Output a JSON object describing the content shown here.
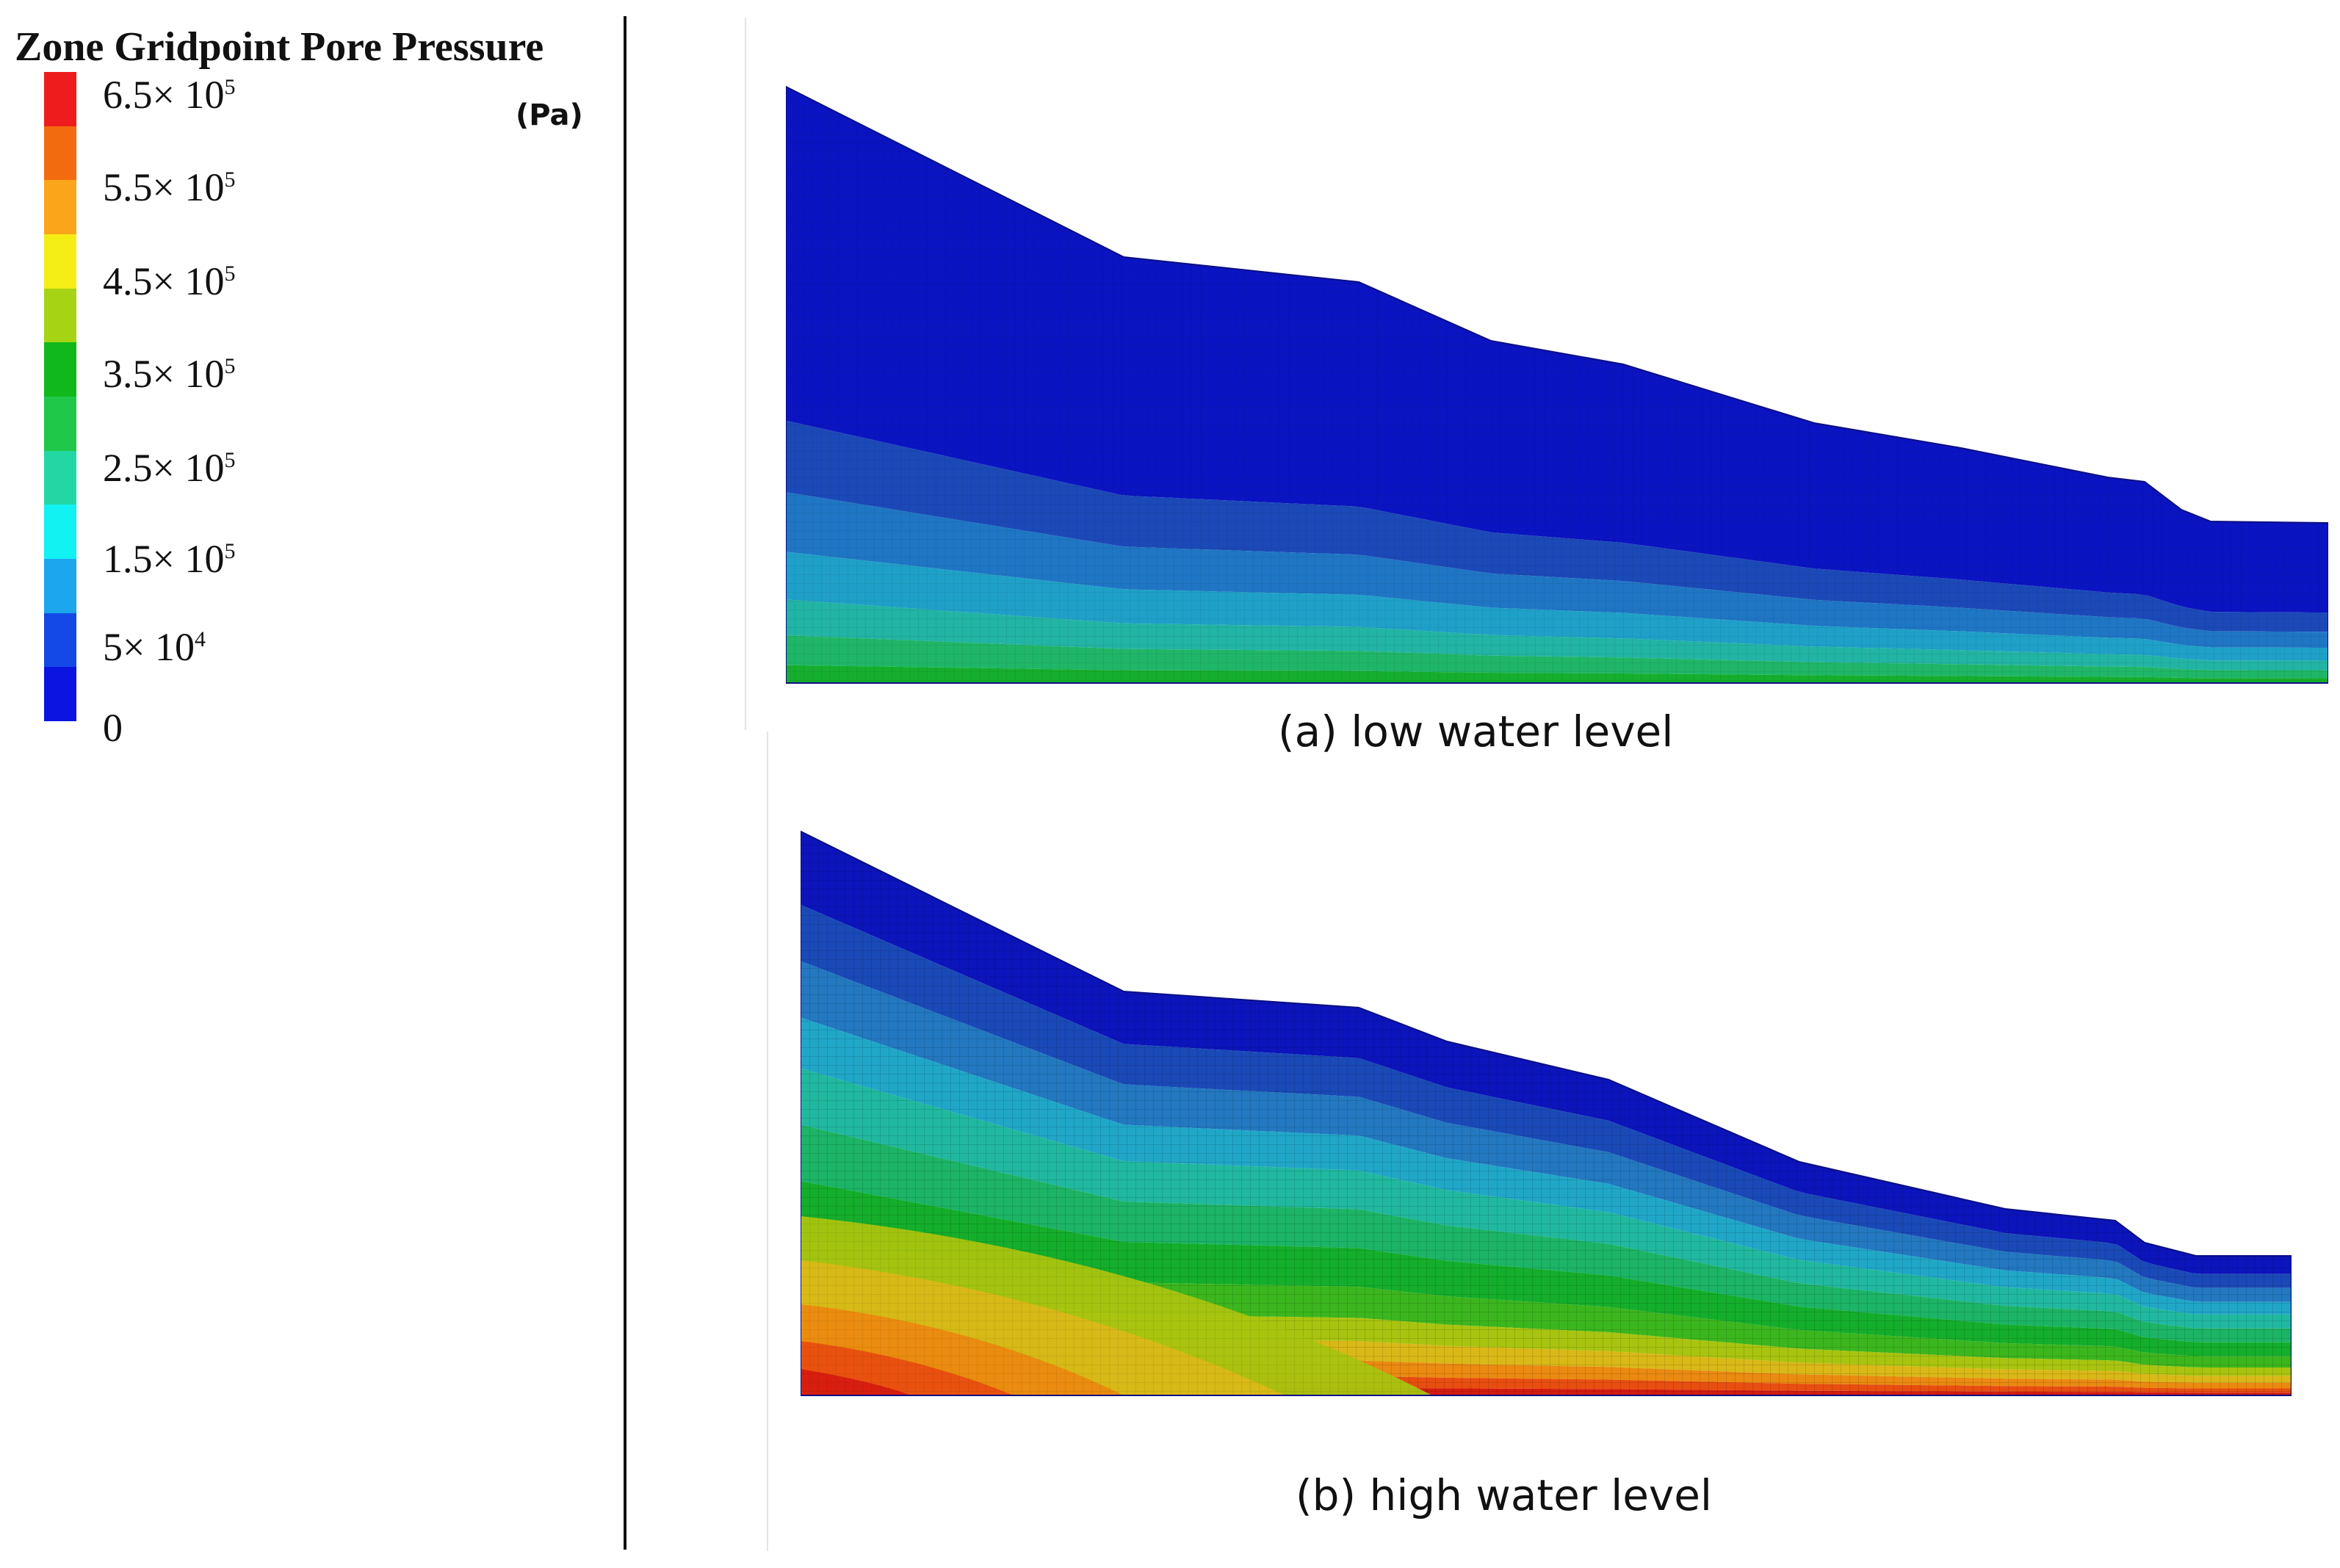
{
  "legend": {
    "title": "Zone Gridpoint Pore Pressure",
    "unit": "(Pa)",
    "colors": [
      "#ee1c1c",
      "#f46b0f",
      "#fba51a",
      "#f5ee16",
      "#a6d414",
      "#11b81b",
      "#20c84a",
      "#23d7a4",
      "#12f2f2",
      "#1ca6ee",
      "#1449e8",
      "#0b14e0"
    ],
    "labels": [
      {
        "mantissa": "6.5×",
        "base": "10",
        "exp": "5"
      },
      {
        "mantissa": "5.5×",
        "base": "10",
        "exp": "5"
      },
      {
        "mantissa": "4.5×",
        "base": "10",
        "exp": "5"
      },
      {
        "mantissa": "3.5×",
        "base": "10",
        "exp": "5"
      },
      {
        "mantissa": "2.5×",
        "base": "10",
        "exp": "5"
      },
      {
        "mantissa": "1.5×",
        "base": "10",
        "exp": "5"
      },
      {
        "mantissa": "5×",
        "base": "10",
        "exp": "4"
      },
      {
        "mantissa": "0",
        "base": "",
        "exp": ""
      }
    ]
  },
  "panels": [
    {
      "id": "a",
      "caption": "(a) low water level",
      "band_colors": [
        "#0b14c2",
        "#1c49b8",
        "#1f76c4",
        "#1fa0c8",
        "#22b4a4",
        "#1fb668",
        "#16ae2e"
      ]
    },
    {
      "id": "b",
      "caption": "(b) high water level",
      "band_colors": [
        "#0c14bc",
        "#1a4ab8",
        "#2378c0",
        "#20a7c8",
        "#21b8a0",
        "#1cb466",
        "#14ae2c",
        "#3cb61e",
        "#a8c410",
        "#d9b818",
        "#ea8a10",
        "#e84e10",
        "#d51c10"
      ]
    }
  ]
}
